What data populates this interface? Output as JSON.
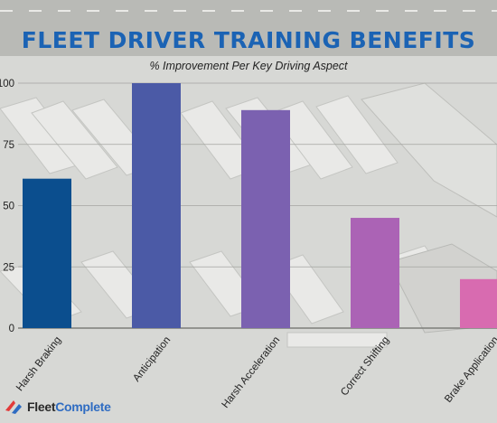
{
  "chart_data": {
    "type": "bar",
    "title": "FLEET DRIVER TRAINING BENEFITS",
    "subtitle": "% Improvement Per Key Driving Aspect",
    "xlabel": "",
    "ylabel": "",
    "categories": [
      "Harsh Braking",
      "Anticipation",
      "Harsh Acceleration",
      "Correct Shifting",
      "Brake Application"
    ],
    "values": [
      61,
      100,
      89,
      45,
      20
    ],
    "bar_colors": [
      "#0b4e8e",
      "#4b5aa6",
      "#7b61b0",
      "#ab63b5",
      "#d86bb0"
    ],
    "ylim": [
      0,
      100
    ],
    "yticks": [
      0,
      25,
      50,
      75,
      100
    ],
    "grid": true,
    "legend": "none"
  },
  "brand": {
    "name": "FleetComplete",
    "name_part1": "Fleet",
    "name_part2": "Complete",
    "mark_color": "#e23a3a"
  },
  "colors": {
    "title": "#1b63b4",
    "subtitle": "#222222"
  }
}
